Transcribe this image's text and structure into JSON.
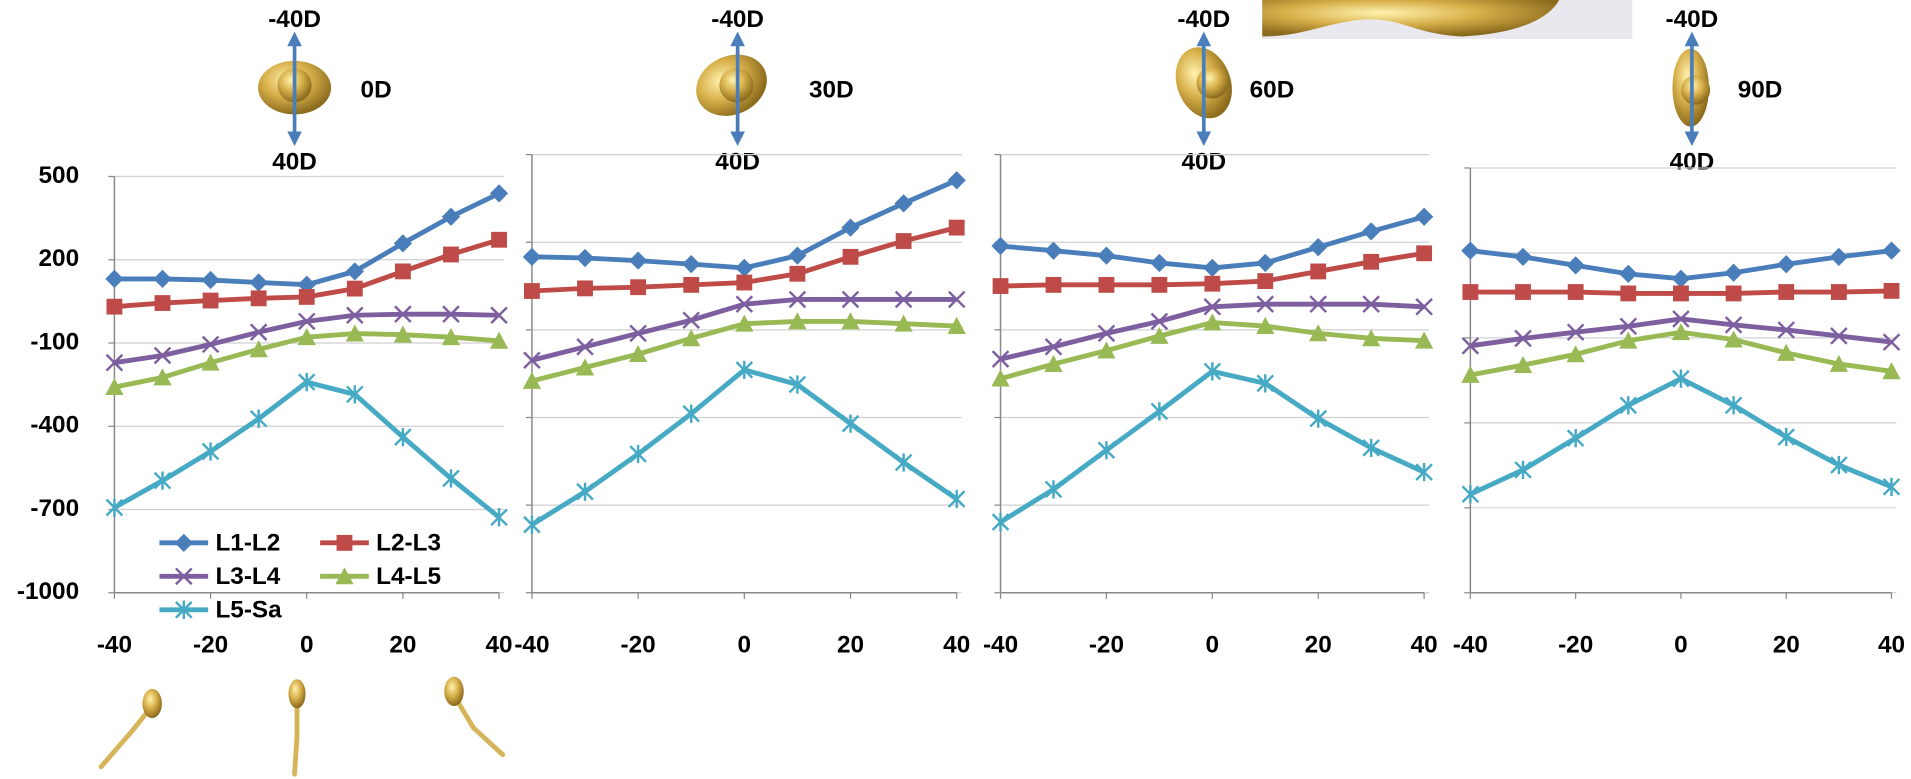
{
  "chart_data": [
    {
      "type": "line",
      "top_label": "-40D",
      "angle_label": "0D",
      "bottom_label": "40D",
      "x": [
        -40,
        -30,
        -20,
        -10,
        0,
        10,
        20,
        30,
        40
      ],
      "xlim": [
        -40,
        40
      ],
      "xticks": [
        -40,
        -20,
        0,
        20,
        40
      ],
      "ylim": [
        -1000,
        500
      ],
      "yticks": [
        -1000,
        -700,
        -400,
        -100,
        200,
        500
      ],
      "ytick_labels": true,
      "grid": true,
      "legend": "lower left",
      "series": [
        {
          "name": "L1-L2",
          "color": "#4a7ebb",
          "marker": "diamond",
          "values": [
            131,
            131,
            127,
            118,
            110,
            158,
            259,
            355,
            439
          ]
        },
        {
          "name": "L2-L3",
          "color": "#be4b48",
          "marker": "square",
          "values": [
            31,
            44,
            53,
            61,
            66,
            96,
            158,
            219,
            272
          ]
        },
        {
          "name": "L3-L4",
          "color": "#7d5fa0",
          "marker": "x",
          "values": [
            -171,
            -145,
            -105,
            -61,
            -22,
            0,
            4,
            4,
            0
          ]
        },
        {
          "name": "L4-L5",
          "color": "#98b954",
          "marker": "triangle",
          "values": [
            -259,
            -224,
            -171,
            -123,
            -79,
            -66,
            -70,
            -79,
            -92
          ]
        },
        {
          "name": "L5-Sa",
          "color": "#46aac5",
          "marker": "star",
          "values": [
            -693,
            -596,
            -491,
            -373,
            -241,
            -285,
            -439,
            -588,
            -728
          ]
        }
      ]
    },
    {
      "type": "line",
      "top_label": "-40D",
      "angle_label": "30D",
      "bottom_label": "40D",
      "x": [
        -40,
        -30,
        -20,
        -10,
        0,
        10,
        20,
        30,
        40
      ],
      "xlim": [
        -40,
        40
      ],
      "xticks": [
        -40,
        -20,
        0,
        20,
        40
      ],
      "ylim": [
        -1000,
        500
      ],
      "yticks": [
        -1000,
        -700,
        -400,
        -100,
        200,
        500
      ],
      "ytick_labels": false,
      "grid": true,
      "series": [
        {
          "color": "#4a7ebb",
          "marker": "diamond",
          "values": [
            150,
            146,
            137,
            125,
            112,
            154,
            250,
            333,
            412
          ]
        },
        {
          "color": "#be4b48",
          "marker": "square",
          "values": [
            33,
            42,
            46,
            54,
            62,
            92,
            150,
            204,
            250
          ]
        },
        {
          "color": "#7d5fa0",
          "marker": "x",
          "values": [
            -204,
            -158,
            -112,
            -67,
            -12,
            4,
            4,
            4,
            4
          ]
        },
        {
          "color": "#98b954",
          "marker": "triangle",
          "values": [
            -275,
            -229,
            -183,
            -129,
            -79,
            -71,
            -71,
            -79,
            -87
          ]
        },
        {
          "color": "#46aac5",
          "marker": "star",
          "values": [
            -767,
            -654,
            -525,
            -387,
            -237,
            -287,
            -421,
            -554,
            -679
          ]
        }
      ]
    },
    {
      "type": "line",
      "top_label": "-40D",
      "angle_label": "60D",
      "bottom_label": "40D",
      "x": [
        -40,
        -30,
        -20,
        -10,
        0,
        10,
        20,
        30,
        40
      ],
      "xlim": [
        -40,
        40
      ],
      "xticks": [
        -40,
        -20,
        0,
        20,
        40
      ],
      "ylim": [
        -1000,
        500
      ],
      "yticks": [
        -1000,
        -700,
        -400,
        -100,
        200,
        500
      ],
      "ytick_labels": false,
      "grid": true,
      "series": [
        {
          "color": "#4a7ebb",
          "marker": "diamond",
          "values": [
            187,
            171,
            154,
            129,
            112,
            129,
            183,
            237,
            287
          ]
        },
        {
          "color": "#be4b48",
          "marker": "square",
          "values": [
            50,
            54,
            54,
            54,
            58,
            67,
            100,
            133,
            162
          ]
        },
        {
          "color": "#7d5fa0",
          "marker": "x",
          "values": [
            -200,
            -158,
            -112,
            -71,
            -21,
            -12,
            -12,
            -12,
            -21
          ]
        },
        {
          "color": "#98b954",
          "marker": "triangle",
          "values": [
            -267,
            -217,
            -171,
            -121,
            -75,
            -87,
            -112,
            -129,
            -137
          ]
        },
        {
          "color": "#46aac5",
          "marker": "star",
          "values": [
            -758,
            -646,
            -512,
            -379,
            -242,
            -283,
            -404,
            -504,
            -587
          ]
        }
      ]
    },
    {
      "type": "line",
      "top_label": "-40D",
      "angle_label": "90D",
      "bottom_label": "40D",
      "x": [
        -40,
        -30,
        -20,
        -10,
        0,
        10,
        20,
        30,
        40
      ],
      "xlim": [
        -40,
        40
      ],
      "xticks": [
        -40,
        -20,
        0,
        20,
        40
      ],
      "ylim": [
        -1000,
        500
      ],
      "yticks": [
        -1000,
        -700,
        -400,
        -100,
        200,
        500
      ],
      "ytick_labels": false,
      "grid": true,
      "series": [
        {
          "color": "#4a7ebb",
          "marker": "diamond",
          "values": [
            208,
            186,
            156,
            126,
            109,
            130,
            160,
            186,
            208
          ]
        },
        {
          "color": "#be4b48",
          "marker": "square",
          "values": [
            62,
            62,
            62,
            57,
            57,
            57,
            62,
            62,
            66
          ]
        },
        {
          "color": "#7d5fa0",
          "marker": "x",
          "values": [
            -128,
            -102,
            -80,
            -59,
            -33,
            -54,
            -72,
            -93,
            -115
          ]
        },
        {
          "color": "#98b954",
          "marker": "triangle",
          "values": [
            -231,
            -196,
            -158,
            -110,
            -80,
            -106,
            -153,
            -192,
            -218
          ]
        },
        {
          "color": "#46aac5",
          "marker": "star",
          "values": [
            -652,
            -566,
            -454,
            -338,
            -244,
            -338,
            -450,
            -549,
            -626
          ]
        }
      ]
    }
  ]
}
